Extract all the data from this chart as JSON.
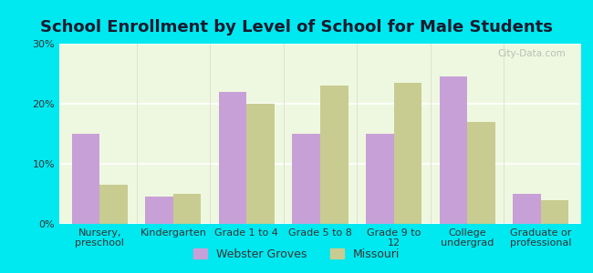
{
  "title": "School Enrollment by Level of School for Male Students",
  "categories": [
    "Nursery,\npreschool",
    "Kindergarten",
    "Grade 1 to 4",
    "Grade 5 to 8",
    "Grade 9 to\n12",
    "College\nundergrad",
    "Graduate or\nprofessional"
  ],
  "webster_groves": [
    15,
    4.5,
    22,
    15,
    15,
    24.5,
    5
  ],
  "missouri": [
    6.5,
    5,
    20,
    23,
    23.5,
    17,
    4
  ],
  "color_webster": "#c8a0d8",
  "color_missouri": "#c8cc90",
  "background_chart": "#eef8e0",
  "background_outer": "#00e8f0",
  "ylim": [
    0,
    30
  ],
  "yticks": [
    0,
    10,
    20,
    30
  ],
  "ytick_labels": [
    "0%",
    "10%",
    "20%",
    "30%"
  ],
  "legend_labels": [
    "Webster Groves",
    "Missouri"
  ],
  "bar_width": 0.38,
  "title_fontsize": 13,
  "tick_fontsize": 8,
  "legend_fontsize": 9,
  "watermark": "City-Data.com"
}
